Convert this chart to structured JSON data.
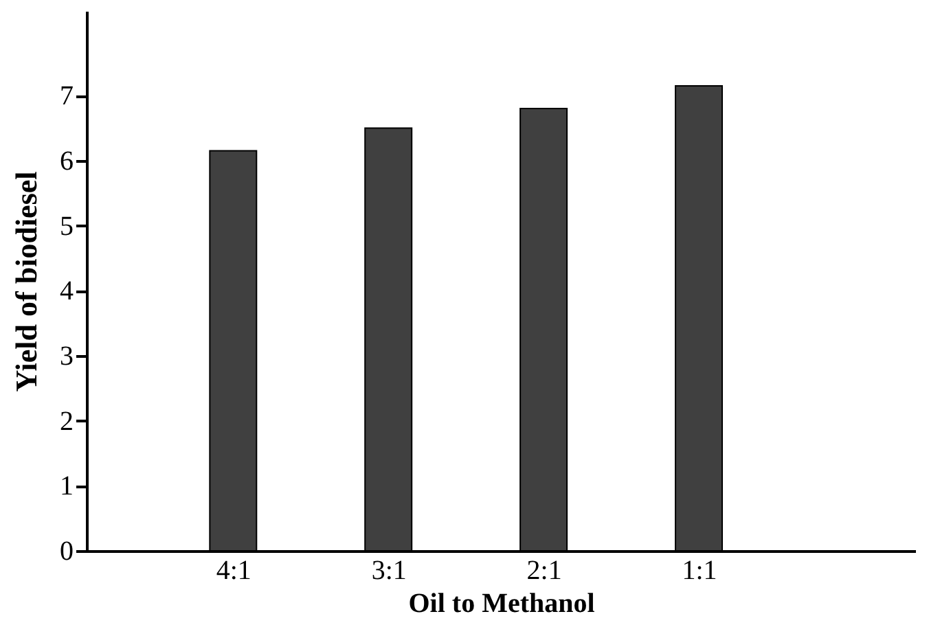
{
  "chart_data": {
    "type": "bar",
    "xlabel": "Oil to Methanol",
    "ylabel": "Yield of biodiesel",
    "categories": [
      "4:1",
      "3:1",
      "2:1",
      "1:1"
    ],
    "values": [
      6.15,
      6.5,
      6.8,
      7.15
    ],
    "color": "#404040",
    "ylim": [
      0,
      8.3
    ],
    "yticks": [
      0,
      1,
      2,
      3,
      4,
      5,
      6,
      7
    ],
    "grid": false
  }
}
